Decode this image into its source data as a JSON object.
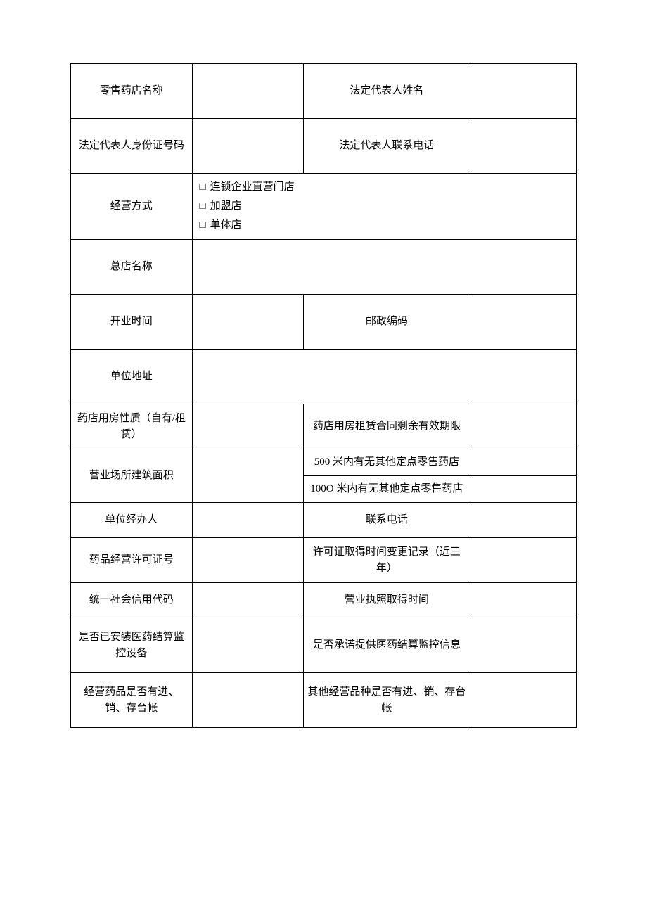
{
  "rows": {
    "r1": {
      "label1": "零售药店名称",
      "label2": "法定代表人姓名"
    },
    "r2": {
      "label1": "法定代表人身份证号码",
      "label2": "法定代表人联系电话"
    },
    "r3": {
      "label1": "经营方式",
      "option1": "连锁企业直营门店",
      "option2": "加盟店",
      "option3": "单体店",
      "checkbox": "□"
    },
    "r4": {
      "label1": "总店名称"
    },
    "r5": {
      "label1": "开业时间",
      "label2": "邮政编码"
    },
    "r6": {
      "label1": "单位地址"
    },
    "r7": {
      "label1": "药店用房性质（自有/租赁）",
      "label2": "药店用房租赁合同剩余有效期限"
    },
    "r8": {
      "label1": "营业场所建筑面积",
      "label2a": "500 米内有无其他定点零售药店",
      "label2b": "100O 米内有无其他定点零售药店"
    },
    "r9": {
      "label1": "单位经办人",
      "label2": "联系电话"
    },
    "r10": {
      "label1": "药品经营许可证号",
      "label2": "许可证取得时间变更记录（近三年）"
    },
    "r11": {
      "label1": "统一社会信用代码",
      "label2": "营业执照取得时间"
    },
    "r12": {
      "label1": "是否已安装医药结算监控设备",
      "label2": "是否承诺提供医药结算监控信息"
    },
    "r13": {
      "label1": "经营药品是否有进、销、存台帐",
      "label2": "其他经营品种是否有进、销、存台帐"
    }
  },
  "styling": {
    "border_color": "#000000",
    "background_color": "#ffffff",
    "font_family": "SimSun",
    "font_size": 15,
    "row_heights": {
      "tall": 78,
      "med": 64,
      "short": 50,
      "sub": 38
    }
  }
}
